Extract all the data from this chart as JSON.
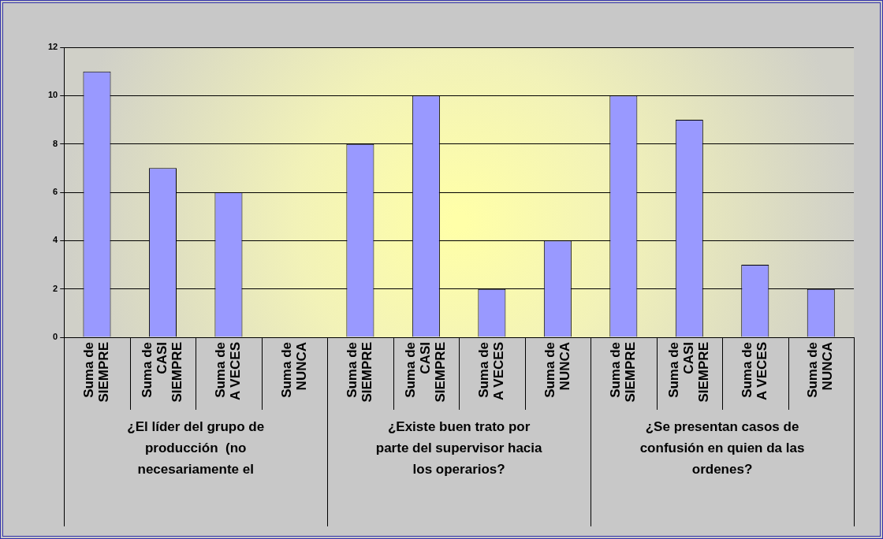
{
  "chart_data": {
    "type": "bar",
    "categories": [
      "Suma de SIEMPRE",
      "Suma de CASI SIEMPRE",
      "Suma de A VECES",
      "Suma de NUNCA",
      "Suma de SIEMPRE",
      "Suma de CASI SIEMPRE",
      "Suma de A VECES",
      "Suma de NUNCA",
      "Suma de SIEMPRE",
      "Suma de CASI SIEMPRE",
      "Suma de A VECES",
      "Suma de NUNCA"
    ],
    "values": [
      11,
      7,
      6,
      0,
      8,
      10,
      2,
      4,
      10,
      9,
      3,
      2
    ],
    "color": "#9999ff",
    "ylim": [
      0,
      12
    ],
    "yticks": [
      0,
      2,
      4,
      6,
      8,
      10,
      12
    ],
    "grid": "y",
    "legend": false,
    "annotations": [
      "¿El líder del grupo de producción  (no necesariamente el",
      "¿Existe buen trato por parte del supervisor hacia los operarios?",
      "¿Se presentan casos de confusión en quien da las ordenes?"
    ]
  }
}
